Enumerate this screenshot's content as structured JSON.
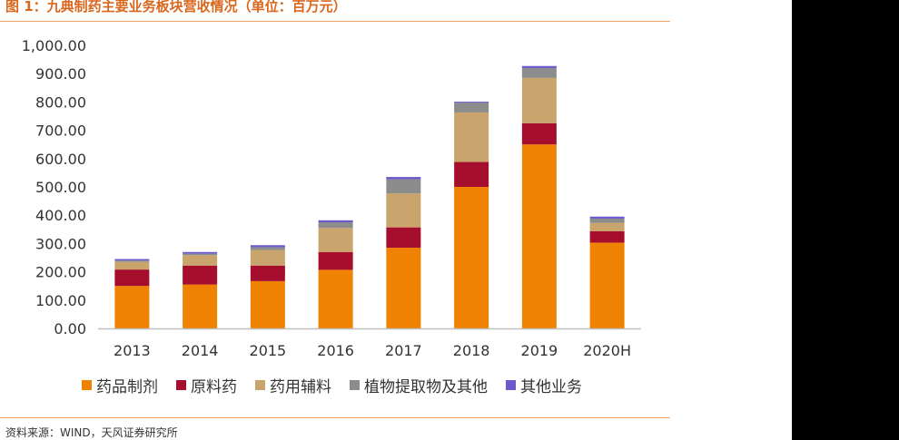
{
  "header": {
    "title": "图 1：九典制药主要业务板块营收情况（单位：百万元）"
  },
  "footer": {
    "source": "资料来源：WIND，天风证券研究所"
  },
  "chart_data": {
    "type": "bar",
    "stacked": true,
    "categories": [
      "2013",
      "2014",
      "2015",
      "2016",
      "2017",
      "2018",
      "2019",
      "2020H"
    ],
    "ylim": [
      0,
      1000
    ],
    "yticks": [
      "0.00",
      "100.00",
      "200.00",
      "300.00",
      "400.00",
      "500.00",
      "600.00",
      "700.00",
      "800.00",
      "900.00",
      "1,000.00"
    ],
    "grid": false,
    "legend_position": "bottom",
    "series": [
      {
        "name": "药品制剂",
        "color": "#ef8200",
        "values": [
          150,
          155,
          167,
          207,
          285,
          500,
          650,
          303
        ]
      },
      {
        "name": "原料药",
        "color": "#a50f2d",
        "values": [
          58,
          67,
          55,
          63,
          72,
          88,
          75,
          40
        ]
      },
      {
        "name": "药用辅料",
        "color": "#c9a46c",
        "values": [
          27,
          37,
          55,
          85,
          120,
          175,
          160,
          30
        ]
      },
      {
        "name": "植物提取物及其他",
        "color": "#8c8c8c",
        "values": [
          5,
          5,
          10,
          20,
          50,
          35,
          35,
          15
        ]
      },
      {
        "name": "其他业务",
        "color": "#6a5acd",
        "values": [
          5,
          6,
          7,
          7,
          8,
          3,
          7,
          7
        ]
      }
    ]
  }
}
